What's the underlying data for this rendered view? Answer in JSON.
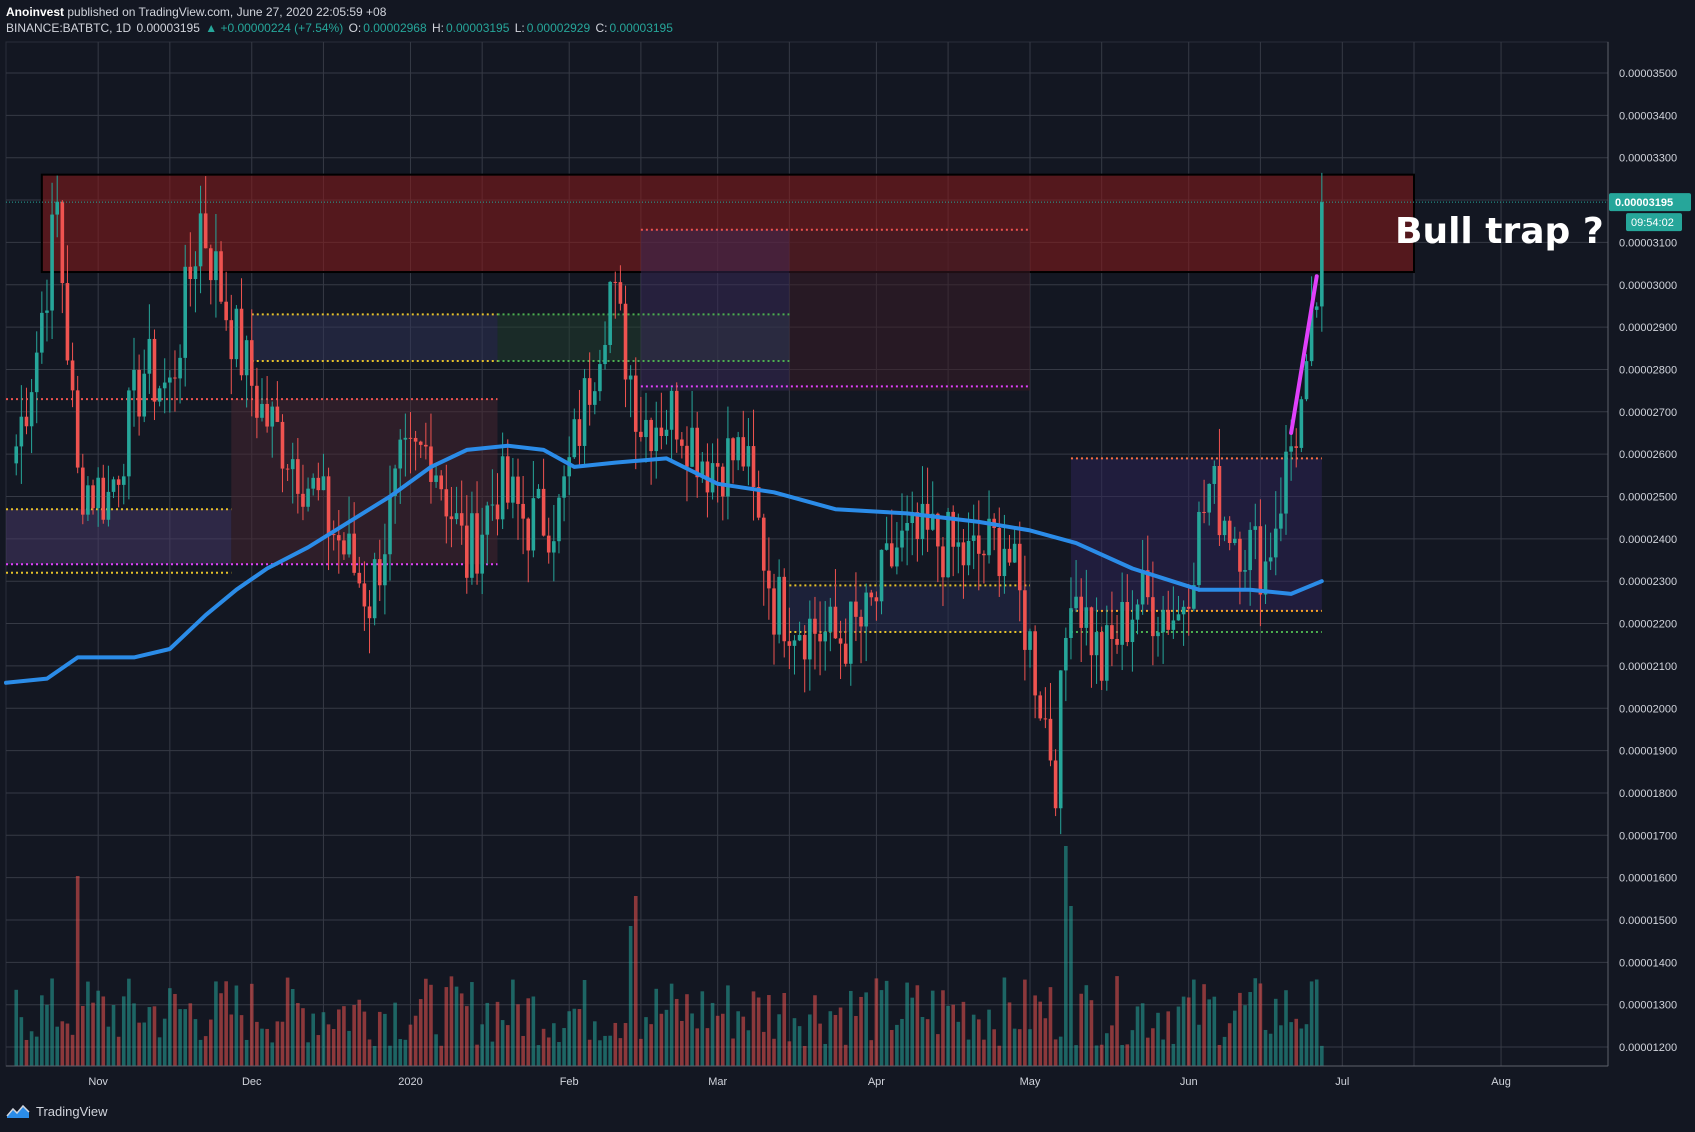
{
  "header": {
    "author": "Anoinvest",
    "published": "published on TradingView.com, June 27, 2020 22:05:59 +08",
    "symbol": "BINANCE:BATBTC, 1D",
    "last": "0.00003195",
    "change": "▲ +0.00000224 (+7.54%)",
    "o_label": "O:",
    "o_value": "0.00002968",
    "h_label": "H:",
    "h_value": "0.00003195",
    "l_label": "L:",
    "l_value": "0.00002929",
    "c_label": "C:",
    "c_value": "0.00003195"
  },
  "annotation": {
    "text": "Bull trap ?"
  },
  "price_tag": {
    "price": "0.00003195",
    "countdown": "09:54:02"
  },
  "footer": {
    "brand": "TradingView"
  },
  "colors": {
    "background": "#131722",
    "grid": "#363a45",
    "up": "#26a69a",
    "down": "#ef5350",
    "ma": "#2b8ce8",
    "zone": "#8b1a1a",
    "magenta": "#e040fb"
  },
  "chart_data": {
    "type": "candlestick",
    "symbol": "BINANCE:BATBTC",
    "interval": "1D",
    "y_axis": {
      "ticks": [
        "0.00003500",
        "0.00003400",
        "0.00003300",
        "0.00003200",
        "0.00003100",
        "0.00003000",
        "0.00002900",
        "0.00002800",
        "0.00002700",
        "0.00002600",
        "0.00002500",
        "0.00002400",
        "0.00002300",
        "0.00002200",
        "0.00002100",
        "0.00002000",
        "0.00001900",
        "0.00001800",
        "0.00001700",
        "0.00001600",
        "0.00001500",
        "0.00001400",
        "0.00001300",
        "0.00001200"
      ],
      "range": [
        1.17e-05,
        3.58e-05
      ]
    },
    "x_axis": {
      "ticks": [
        "Nov",
        "Dec",
        "2020",
        "Feb",
        "Mar",
        "Apr",
        "May",
        "Jun",
        "Jul",
        "Aug"
      ]
    },
    "price_path": [
      [
        "2019-10-16",
        2.62e-05
      ],
      [
        "2019-10-20",
        2.85e-05
      ],
      [
        "2019-10-24",
        3.18e-05
      ],
      [
        "2019-10-28",
        2.54e-05
      ],
      [
        "2019-11-03",
        2.5e-05
      ],
      [
        "2019-11-10",
        2.8e-05
      ],
      [
        "2019-11-15",
        2.75e-05
      ],
      [
        "2019-11-21",
        3.16e-05
      ],
      [
        "2019-11-27",
        2.9e-05
      ],
      [
        "2019-12-03",
        2.7e-05
      ],
      [
        "2019-12-10",
        2.58e-05
      ],
      [
        "2019-12-17",
        2.42e-05
      ],
      [
        "2019-12-24",
        2.26e-05
      ],
      [
        "2019-12-30",
        2.55e-05
      ],
      [
        "2020-01-05",
        2.62e-05
      ],
      [
        "2020-01-12",
        2.35e-05
      ],
      [
        "2020-01-18",
        2.52e-05
      ],
      [
        "2020-01-24",
        2.44e-05
      ],
      [
        "2020-01-30",
        2.46e-05
      ],
      [
        "2020-02-04",
        2.72e-05
      ],
      [
        "2020-02-09",
        3e-05
      ],
      [
        "2020-02-15",
        2.68e-05
      ],
      [
        "2020-02-22",
        2.7e-05
      ],
      [
        "2020-02-28",
        2.58e-05
      ],
      [
        "2020-03-06",
        2.6e-05
      ],
      [
        "2020-03-12",
        2.25e-05
      ],
      [
        "2020-03-18",
        2.2e-05
      ],
      [
        "2020-03-24",
        2.16e-05
      ],
      [
        "2020-03-30",
        2.2e-05
      ],
      [
        "2020-04-05",
        2.38e-05
      ],
      [
        "2020-04-12",
        2.4e-05
      ],
      [
        "2020-04-19",
        2.35e-05
      ],
      [
        "2020-04-26",
        2.4e-05
      ],
      [
        "2020-05-01",
        2.15e-05
      ],
      [
        "2020-05-06",
        1.85e-05
      ],
      [
        "2020-05-09",
        2.32e-05
      ],
      [
        "2020-05-15",
        2.1e-05
      ],
      [
        "2020-05-22",
        2.26e-05
      ],
      [
        "2020-05-30",
        2.22e-05
      ],
      [
        "2020-06-05",
        2.52e-05
      ],
      [
        "2020-06-10",
        2.42e-05
      ],
      [
        "2020-06-16",
        2.34e-05
      ],
      [
        "2020-06-21",
        2.62e-05
      ],
      [
        "2020-06-24",
        2.75e-05
      ],
      [
        "2020-06-26",
        2.97e-05
      ],
      [
        "2020-06-27",
        3.195e-05
      ]
    ],
    "moving_average": [
      [
        "2019-10-14",
        2.06e-05
      ],
      [
        "2019-10-22",
        2.07e-05
      ],
      [
        "2019-10-28",
        2.12e-05
      ],
      [
        "2019-11-08",
        2.12e-05
      ],
      [
        "2019-11-15",
        2.14e-05
      ],
      [
        "2019-11-22",
        2.22e-05
      ],
      [
        "2019-11-28",
        2.28e-05
      ],
      [
        "2019-12-04",
        2.33e-05
      ],
      [
        "2019-12-12",
        2.38e-05
      ],
      [
        "2019-12-20",
        2.44e-05
      ],
      [
        "2019-12-28",
        2.5e-05
      ],
      [
        "2020-01-05",
        2.57e-05
      ],
      [
        "2020-01-12",
        2.61e-05
      ],
      [
        "2020-01-20",
        2.62e-05
      ],
      [
        "2020-01-27",
        2.61e-05
      ],
      [
        "2020-02-02",
        2.57e-05
      ],
      [
        "2020-02-10",
        2.58e-05
      ],
      [
        "2020-02-20",
        2.59e-05
      ],
      [
        "2020-03-01",
        2.53e-05
      ],
      [
        "2020-03-12",
        2.51e-05
      ],
      [
        "2020-03-24",
        2.47e-05
      ],
      [
        "2020-04-07",
        2.46e-05
      ],
      [
        "2020-04-21",
        2.44e-05
      ],
      [
        "2020-05-01",
        2.42e-05
      ],
      [
        "2020-05-10",
        2.39e-05
      ],
      [
        "2020-05-21",
        2.33e-05
      ],
      [
        "2020-06-03",
        2.28e-05
      ],
      [
        "2020-06-13",
        2.28e-05
      ],
      [
        "2020-06-21",
        2.27e-05
      ],
      [
        "2020-06-27",
        2.3e-05
      ]
    ],
    "zones": [
      {
        "name": "resistance-zone",
        "from": "2019-10-21",
        "to": "2020-07-15",
        "top": 3.26e-05,
        "bottom": 3.03e-05
      }
    ],
    "volume_bars": "Daily volume histogram along the bottom of the chart, colored green/red by candle direction; largest spikes in late October 2019, mid-February 2020 and early May 2020."
  }
}
